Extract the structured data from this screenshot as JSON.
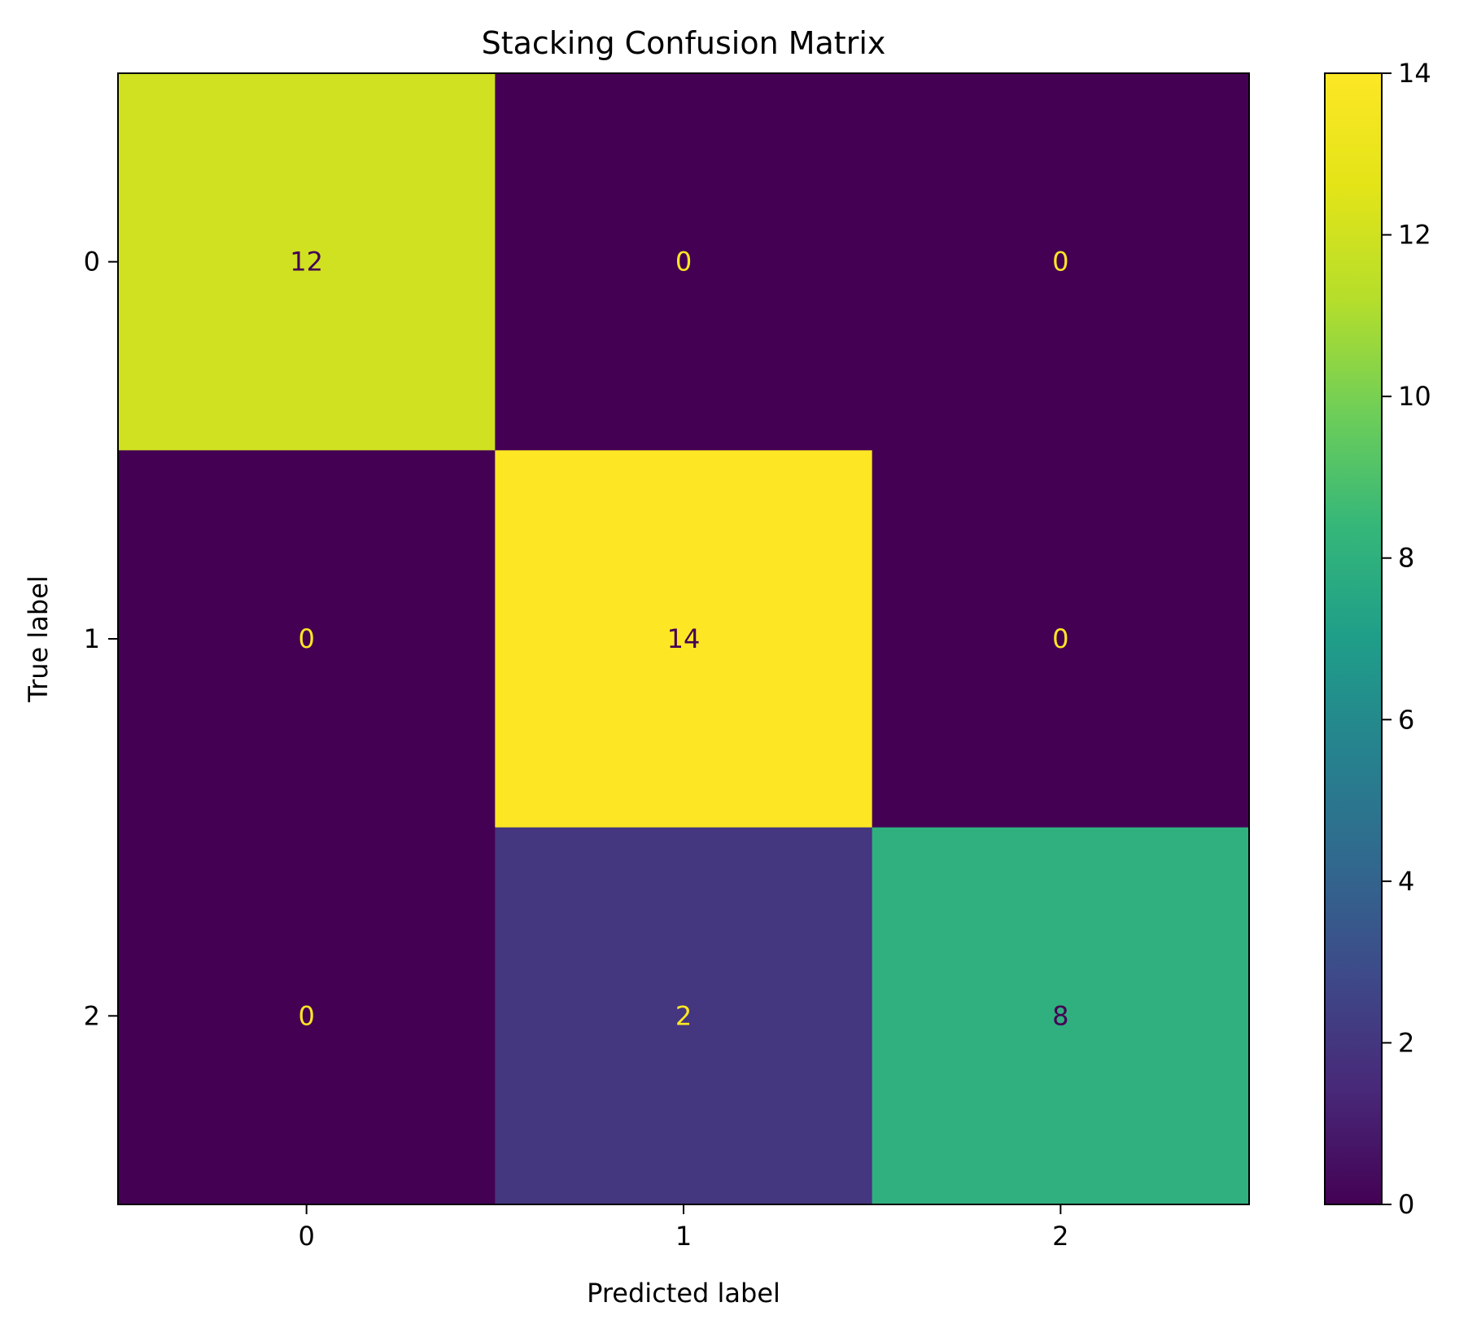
{
  "chart_data": {
    "type": "heatmap",
    "title": "Stacking Confusion Matrix",
    "xlabel": "Predicted label",
    "ylabel": "True label",
    "x_categories": [
      "0",
      "1",
      "2"
    ],
    "y_categories": [
      "0",
      "1",
      "2"
    ],
    "values": [
      [
        12,
        0,
        0
      ],
      [
        0,
        14,
        0
      ],
      [
        0,
        2,
        8
      ]
    ],
    "colorbar": {
      "colormap": "viridis",
      "min": 0,
      "max": 14,
      "ticks": [
        "0",
        "2",
        "4",
        "6",
        "8",
        "10",
        "12",
        "14"
      ]
    },
    "text_colors": {
      "on_dark": "#fde725",
      "on_light": "#440154"
    }
  }
}
